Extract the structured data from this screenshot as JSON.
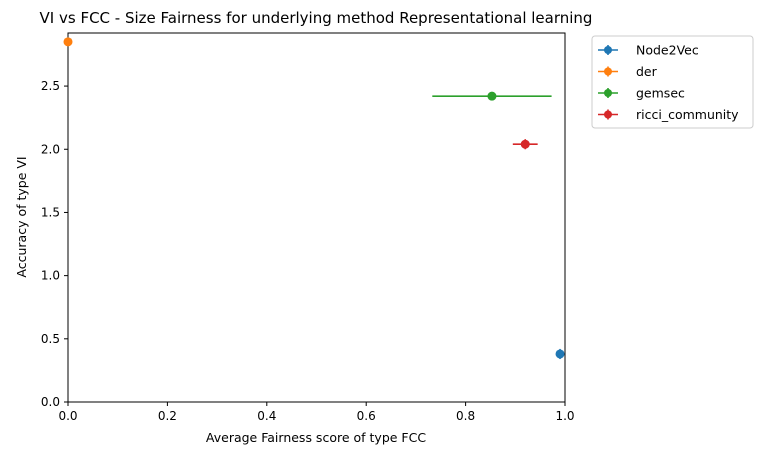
{
  "chart_data": {
    "type": "scatter",
    "title": "VI vs FCC - Size Fairness for underlying method Representational learning",
    "xlabel": "Average Fairness score of type FCC",
    "ylabel": "Accuracy of type VI",
    "xlim": [
      0.0,
      1.0
    ],
    "ylim": [
      0.0,
      2.92
    ],
    "x_ticks": [
      "0.0",
      "0.2",
      "0.4",
      "0.6",
      "0.8",
      "1.0"
    ],
    "y_ticks": [
      "0.0",
      "0.5",
      "1.0",
      "1.5",
      "2.0",
      "2.5"
    ],
    "grid": false,
    "legend_position": "outside-top-right",
    "series": [
      {
        "name": "Node2Vec",
        "color": "#1f77b4",
        "x": 0.99,
        "y": 0.38,
        "xerr": 0.006,
        "yerr": 0.04
      },
      {
        "name": "der",
        "color": "#ff7f0e",
        "x": 0.0,
        "y": 2.85,
        "xerr": 0.0,
        "yerr": 0.0
      },
      {
        "name": "gemsec",
        "color": "#2ca02c",
        "x": 0.853,
        "y": 2.42,
        "xerr": 0.12,
        "yerr": 0.0
      },
      {
        "name": "ricci_community",
        "color": "#d62728",
        "x": 0.92,
        "y": 2.04,
        "xerr": 0.025,
        "yerr": 0.04
      }
    ]
  }
}
